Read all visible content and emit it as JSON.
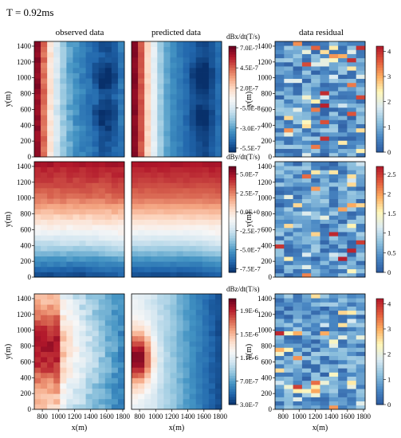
{
  "figure_title": "T = 0.92ms",
  "column_titles": [
    "observed data",
    "predicted data",
    "data residual"
  ],
  "chart_data": [
    {
      "type": "heatmap",
      "component": "dBx/dt(T/s)",
      "ylabel": "y(m)",
      "xlabel": "",
      "y_ticks": [
        "0",
        "200",
        "400",
        "600",
        "800",
        "1000",
        "1200",
        "1400"
      ],
      "x_ticks": [],
      "xlim": [
        700,
        1820
      ],
      "ylim": [
        0,
        1460
      ],
      "colorbar_ticks": [
        "7.0E-7",
        "4.5E-7",
        "2.0E-7",
        "-5.0E-8",
        "-3.0E-7",
        "-5.5E-7"
      ],
      "colorbar_range": [
        -6e-07,
        7.2e-07
      ],
      "residual_colorbar_ticks": [
        "4",
        "3",
        "2",
        "1",
        "0"
      ],
      "residual_range": [
        0,
        4.2
      ],
      "observed_x_profile": {
        "x": [
          720,
          800,
          900,
          1000,
          1100,
          1200,
          1300,
          1400,
          1500,
          1600,
          1700,
          1800
        ],
        "value": [
          7e-07,
          5e-07,
          1.5e-07,
          -1e-07,
          -2.5e-07,
          -3.3e-07,
          -3.8e-07,
          -4.3e-07,
          -4.8e-07,
          -5.2e-07,
          -4.8e-07,
          -4e-07
        ]
      },
      "predicted_x_profile": {
        "x": [
          720,
          800,
          900,
          1000,
          1100,
          1200,
          1300,
          1400,
          1500,
          1600,
          1700,
          1800
        ],
        "value": [
          7e-07,
          5.5e-07,
          2e-07,
          -5e-08,
          -2.5e-07,
          -3.5e-07,
          -4e-07,
          -4.5e-07,
          -5e-07,
          -5.5e-07,
          -5e-07,
          -4.3e-07
        ]
      }
    },
    {
      "type": "heatmap",
      "component": "dBy/dt(T/s)",
      "ylabel": "y(m)",
      "xlabel": "",
      "y_ticks": [
        "0",
        "200",
        "400",
        "600",
        "800",
        "1000",
        "1200",
        "1400"
      ],
      "x_ticks": [],
      "xlim": [
        700,
        1820
      ],
      "ylim": [
        0,
        1460
      ],
      "colorbar_ticks": [
        "5.0E-7",
        "2.5E-7",
        "0.0E+0",
        "-2.5E-7",
        "-5.0E-7",
        "-7.5E-7"
      ],
      "colorbar_range": [
        -8e-07,
        6e-07
      ],
      "residual_colorbar_ticks": [
        "2.5",
        "2",
        "1.5",
        "1",
        "0.5",
        "0"
      ],
      "residual_range": [
        0,
        2.7
      ],
      "observed_y_profile": {
        "y": [
          0,
          200,
          400,
          600,
          800,
          1000,
          1200,
          1400,
          1460
        ],
        "value": [
          -7.5e-07,
          -5.5e-07,
          -3e-07,
          -1e-07,
          1e-07,
          2.8e-07,
          3.8e-07,
          4.5e-07,
          5e-07
        ]
      },
      "predicted_y_profile": {
        "y": [
          0,
          200,
          400,
          600,
          800,
          1000,
          1200,
          1400,
          1460
        ],
        "value": [
          -7.5e-07,
          -5.5e-07,
          -3e-07,
          -1e-07,
          1e-07,
          2.8e-07,
          3.8e-07,
          4.5e-07,
          5e-07
        ]
      }
    },
    {
      "type": "heatmap",
      "component": "dBz/dt(T/s)",
      "ylabel": "y(m)",
      "xlabel": "x(m)",
      "y_ticks": [
        "0",
        "200",
        "400",
        "600",
        "800",
        "1000",
        "1200",
        "1400"
      ],
      "x_ticks": [
        "800",
        "1000",
        "1200",
        "1400",
        "1600",
        "1800"
      ],
      "xlim": [
        700,
        1820
      ],
      "ylim": [
        0,
        1460
      ],
      "colorbar_ticks": [
        "1.9E-6",
        "1.5E-6",
        "1.1E-6",
        "7.0E-7",
        "3.0E-7"
      ],
      "colorbar_range": [
        3e-07,
        2.1e-06
      ],
      "residual_colorbar_ticks": [
        "4",
        "3",
        "2",
        "1",
        "0"
      ],
      "residual_range": [
        0,
        4.2
      ]
    }
  ],
  "colors": {
    "colormap": [
      "#08306b",
      "#2166ac",
      "#4393c3",
      "#92c5de",
      "#d1e5f0",
      "#f7f7f7",
      "#fddbc7",
      "#f4a582",
      "#d6604d",
      "#b2182b",
      "#67001f"
    ],
    "residual_colormap": [
      "#2c5aa0",
      "#4a88c4",
      "#8fc1de",
      "#dcebf2",
      "#fff7b8",
      "#fdae61",
      "#e25b3c",
      "#b2182b"
    ]
  }
}
